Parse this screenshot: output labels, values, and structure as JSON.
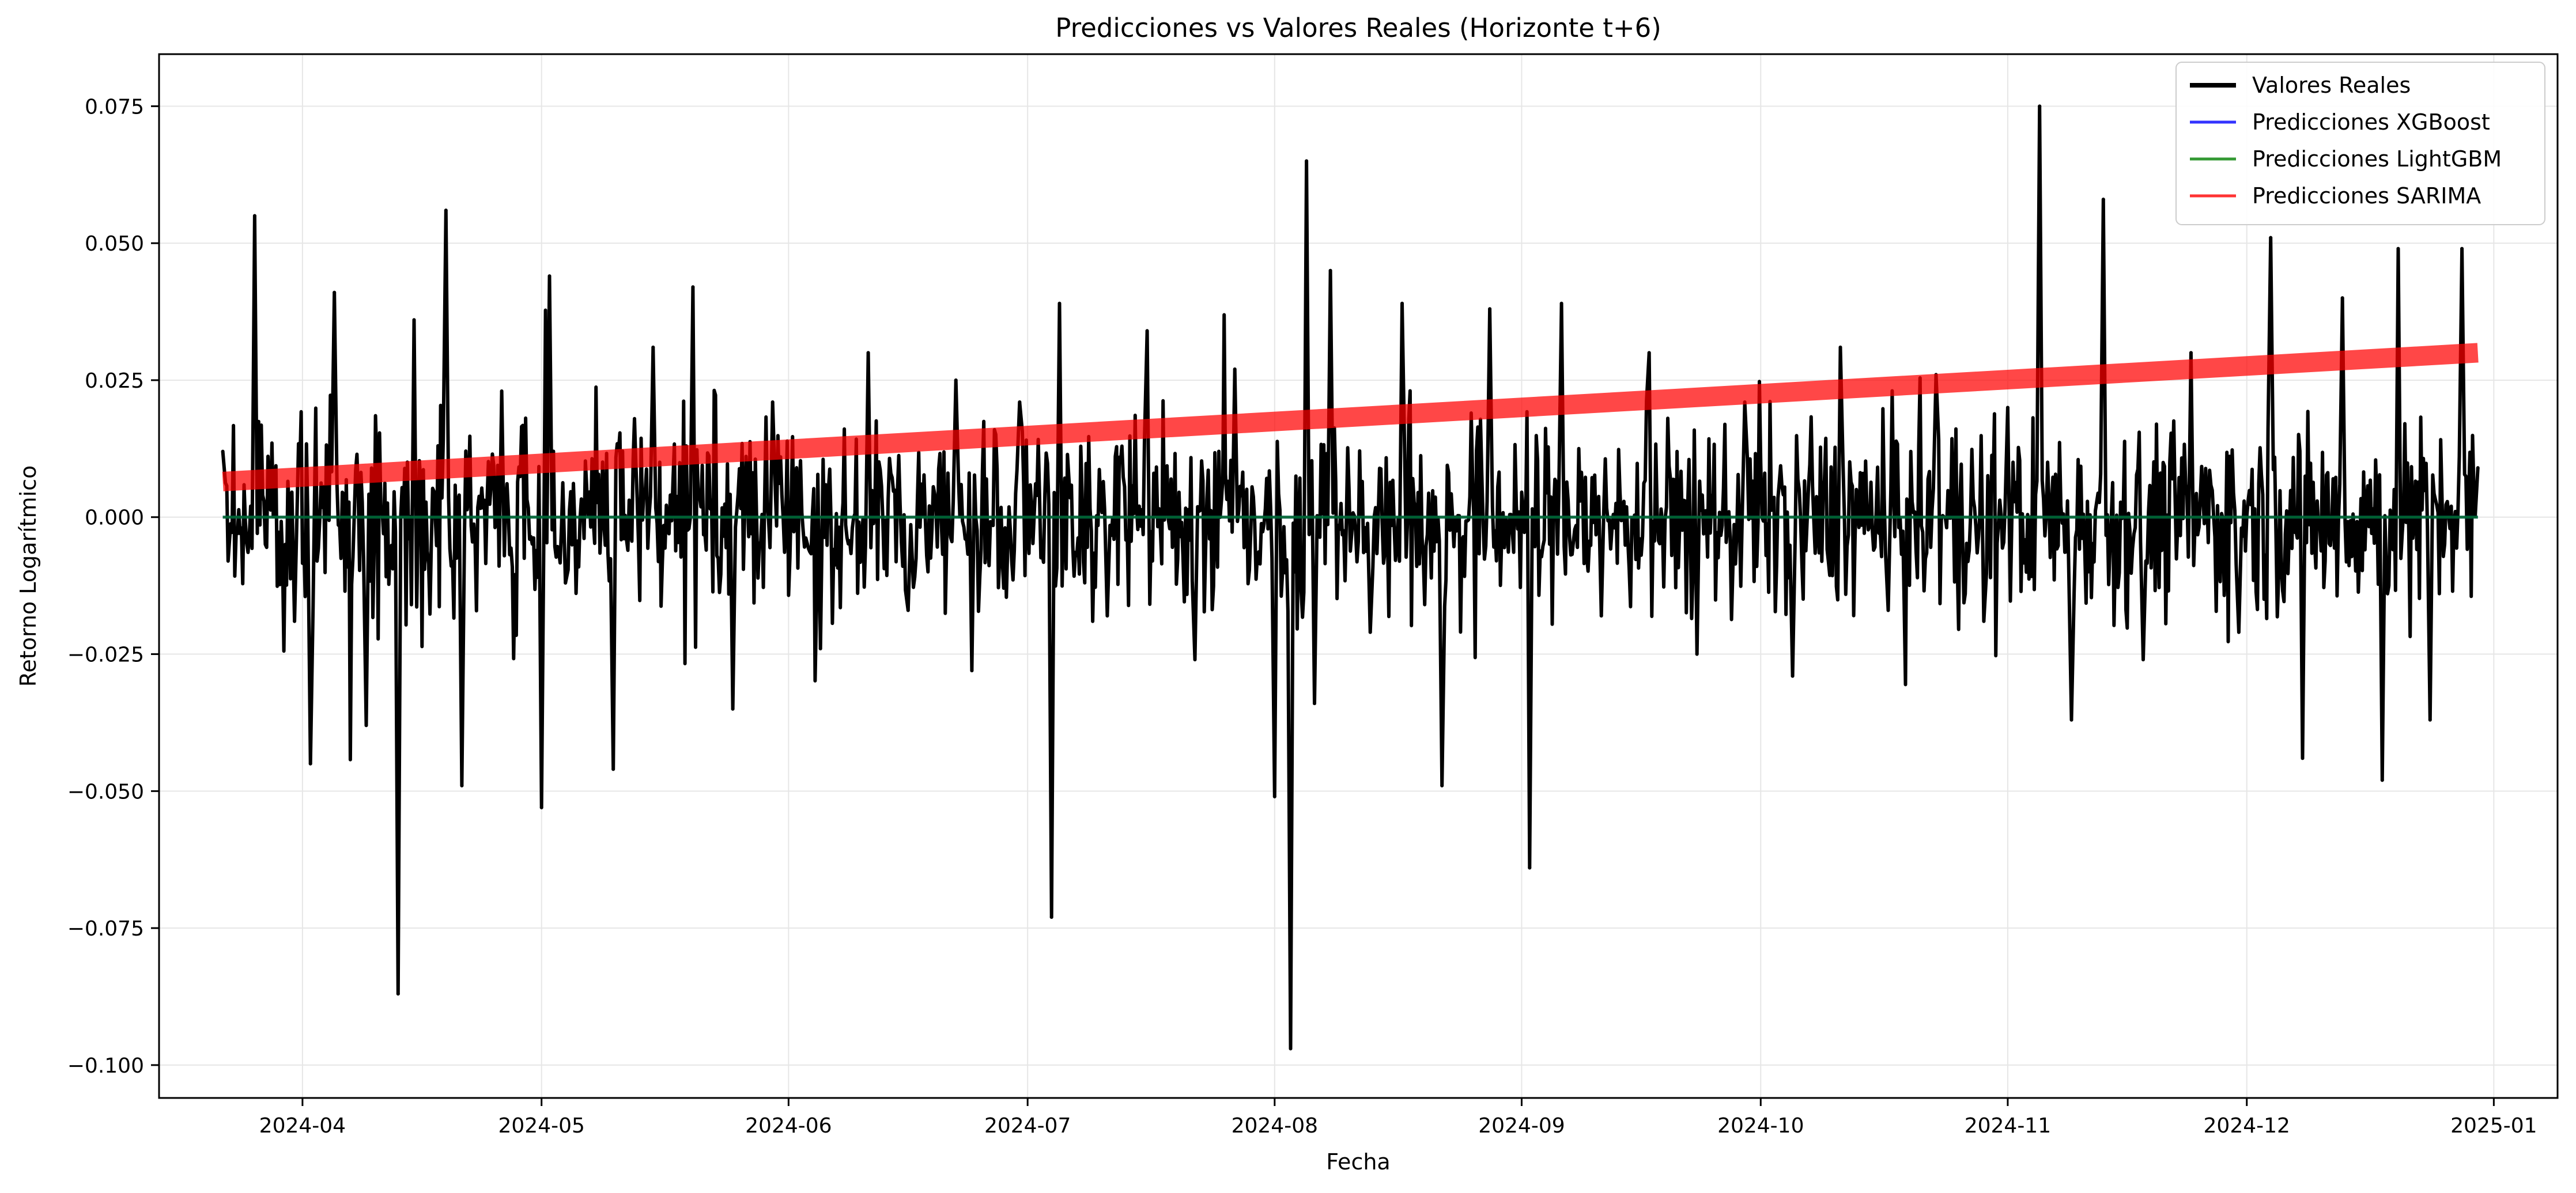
{
  "chart_data": {
    "type": "line",
    "title": "Predicciones vs Valores Reales (Horizonte t+6)",
    "xlabel": "Fecha",
    "ylabel": "Retorno Logarítmico",
    "xlim": [
      "2024-03-14",
      "2025-01-09"
    ],
    "ylim": [
      -0.106,
      0.0845
    ],
    "x_ticks": [
      "2024-04",
      "2024-05",
      "2024-06",
      "2024-07",
      "2024-08",
      "2024-09",
      "2024-10",
      "2024-11",
      "2024-12",
      "2025-01"
    ],
    "x_tick_dates": [
      "2024-04-01",
      "2024-05-01",
      "2024-06-01",
      "2024-07-01",
      "2024-08-01",
      "2024-09-01",
      "2024-10-01",
      "2024-11-01",
      "2024-12-01",
      "2025-01-01"
    ],
    "y_ticks": [
      0.075,
      0.05,
      0.025,
      0.0,
      -0.025,
      -0.05,
      -0.075,
      -0.1
    ],
    "y_tick_labels": [
      "0.075",
      "0.050",
      "0.025",
      "0.000",
      "−0.025",
      "−0.050",
      "−0.075",
      "−0.100"
    ],
    "grid": true,
    "legend_position": "top-right",
    "series": [
      {
        "name": "Valores Reales",
        "color": "#000000",
        "x": [
          "2024-03-22",
          "2024-03-26",
          "2024-03-31",
          "2024-04-02",
          "2024-04-05",
          "2024-04-09",
          "2024-04-13",
          "2024-04-15",
          "2024-04-19",
          "2024-04-21",
          "2024-04-26",
          "2024-05-01",
          "2024-05-02",
          "2024-05-04",
          "2024-05-10",
          "2024-05-15",
          "2024-05-20",
          "2024-05-25",
          "2024-05-30",
          "2024-06-05",
          "2024-06-11",
          "2024-06-16",
          "2024-06-22",
          "2024-06-24",
          "2024-06-30",
          "2024-07-04",
          "2024-07-05",
          "2024-07-11",
          "2024-07-16",
          "2024-07-22",
          "2024-07-27",
          "2024-08-01",
          "2024-08-03",
          "2024-08-05",
          "2024-08-06",
          "2024-08-08",
          "2024-08-13",
          "2024-08-17",
          "2024-08-22",
          "2024-08-28",
          "2024-09-02",
          "2024-09-06",
          "2024-09-11",
          "2024-09-17",
          "2024-09-23",
          "2024-09-29",
          "2024-10-05",
          "2024-10-11",
          "2024-10-17",
          "2024-10-23",
          "2024-10-29",
          "2024-11-01",
          "2024-11-05",
          "2024-11-09",
          "2024-11-13",
          "2024-11-18",
          "2024-11-24",
          "2024-11-30",
          "2024-12-04",
          "2024-12-08",
          "2024-12-13",
          "2024-12-18",
          "2024-12-20",
          "2024-12-24",
          "2024-12-28",
          "2024-12-30"
        ],
        "values": [
          0.012,
          0.055,
          -0.019,
          -0.045,
          0.041,
          -0.038,
          -0.087,
          0.036,
          0.056,
          -0.049,
          0.023,
          -0.053,
          0.044,
          -0.012,
          -0.046,
          0.031,
          0.042,
          -0.035,
          0.021,
          -0.024,
          0.03,
          -0.017,
          0.025,
          -0.028,
          0.021,
          -0.073,
          0.039,
          -0.018,
          0.034,
          -0.026,
          0.027,
          -0.051,
          -0.097,
          0.065,
          -0.034,
          0.045,
          -0.021,
          0.039,
          -0.049,
          0.038,
          -0.064,
          0.039,
          -0.018,
          0.03,
          -0.025,
          0.021,
          -0.029,
          0.031,
          -0.017,
          0.026,
          -0.019,
          0.02,
          0.075,
          -0.037,
          0.058,
          -0.026,
          0.03,
          -0.021,
          0.051,
          -0.044,
          0.04,
          -0.048,
          0.049,
          -0.037,
          0.049,
          0.009
        ]
      },
      {
        "name": "Predicciones XGBoost",
        "color": "#0000ff",
        "x": [
          "2024-03-22",
          "2024-12-30"
        ],
        "values": [
          0.0,
          0.0
        ]
      },
      {
        "name": "Predicciones LightGBM",
        "color": "#008000",
        "x": [
          "2024-03-22",
          "2024-12-30"
        ],
        "values": [
          0.0,
          0.0
        ]
      },
      {
        "name": "Predicciones SARIMA",
        "color": "#ff0000",
        "x": [
          "2024-03-22",
          "2024-12-30"
        ],
        "values": [
          0.0065,
          0.03
        ]
      }
    ]
  }
}
